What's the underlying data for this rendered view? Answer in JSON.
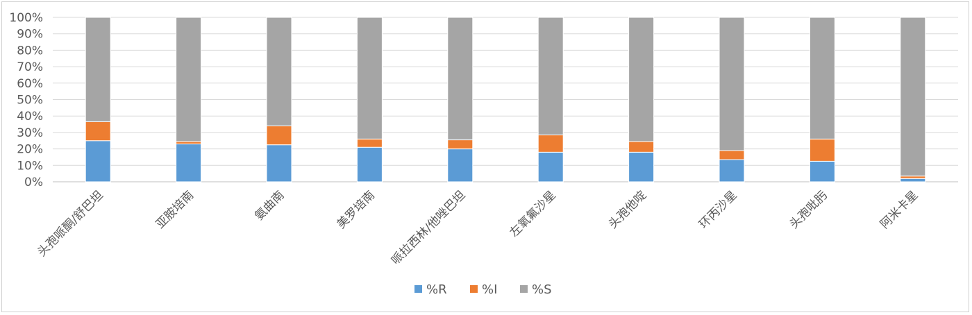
{
  "chart_data": {
    "type": "bar",
    "stacked": true,
    "percent": true,
    "title": "",
    "xlabel": "",
    "ylabel": "",
    "ylim": [
      0,
      100
    ],
    "y_ticks": [
      "0%",
      "10%",
      "20%",
      "30%",
      "40%",
      "50%",
      "60%",
      "70%",
      "80%",
      "90%",
      "100%"
    ],
    "grid": true,
    "legend_position": "bottom",
    "categories": [
      "头孢哌酮/舒巴坦",
      "亚胺培南",
      "氨曲南",
      "美罗培南",
      "哌拉西林/他唑巴坦",
      "左氧氟沙星",
      "头孢他啶",
      "环丙沙星",
      "头孢吡肟",
      "阿米卡星"
    ],
    "series": [
      {
        "name": "%R",
        "color": "#5B9BD5",
        "values": [
          25,
          23,
          22.5,
          21,
          20,
          18,
          18,
          13.5,
          12.5,
          2
        ]
      },
      {
        "name": "%I",
        "color": "#ED7D31",
        "values": [
          11.5,
          1.5,
          11.5,
          5,
          5.5,
          10.5,
          6.5,
          5.5,
          13.5,
          1.5
        ]
      },
      {
        "name": "%S",
        "color": "#A5A5A5",
        "values": [
          63.5,
          75.5,
          66,
          74,
          74.5,
          71.5,
          75.5,
          81,
          74,
          96.5
        ]
      }
    ]
  }
}
